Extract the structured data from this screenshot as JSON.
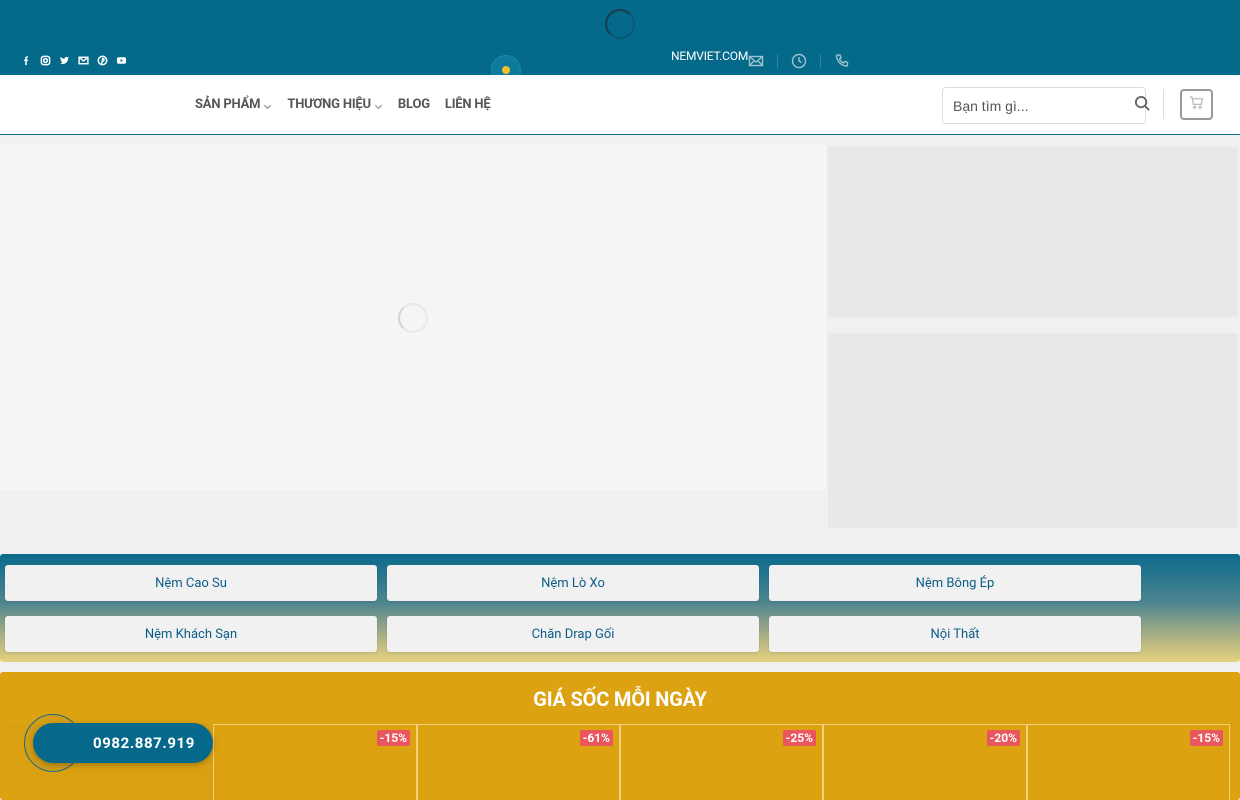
{
  "topbar": {
    "domain": "NEMVIET.COM",
    "social_icons": [
      "facebook-icon",
      "instagram-icon",
      "twitter-icon",
      "email-icon",
      "pinterest-icon",
      "youtube-icon"
    ],
    "contact_icons": [
      "envelope-icon",
      "clock-icon",
      "phone-icon"
    ]
  },
  "nav": {
    "items": [
      {
        "label": "SẢN PHẨM",
        "has_dropdown": true
      },
      {
        "label": "THƯƠNG HIỆU",
        "has_dropdown": true
      },
      {
        "label": "BLOG",
        "has_dropdown": false
      },
      {
        "label": "LIÊN HỆ",
        "has_dropdown": false
      }
    ]
  },
  "search": {
    "placeholder": "Bạn tìm gì..."
  },
  "categories": [
    {
      "label": "Nệm Cao Su"
    },
    {
      "label": "Nệm Lò Xo"
    },
    {
      "label": "Nệm Bông Ép"
    },
    {
      "label": "Nệm Khách Sạn"
    },
    {
      "label": "Chăn Drap Gối"
    },
    {
      "label": "Nội Thất"
    }
  ],
  "deals": {
    "title": "GIÁ SỐC MỖI NGÀY",
    "badges": [
      "-15%",
      "-61%",
      "-25%",
      "-20%",
      "-15%"
    ]
  },
  "phone": {
    "number": "0982.887.919"
  },
  "colors": {
    "primary": "#05698a",
    "accent_yellow": "#dca211",
    "sale_badge": "#e9565e"
  }
}
